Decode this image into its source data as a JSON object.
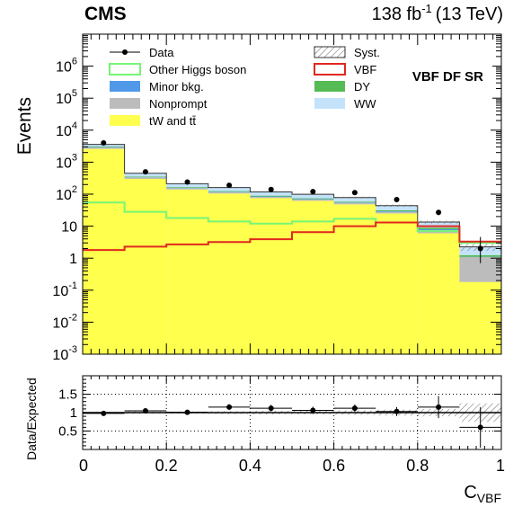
{
  "header": {
    "experiment": "CMS",
    "lumi_value": "138 fb",
    "lumi_exponent": "-1",
    "energy": "(13 TeV)"
  },
  "chart_data": {
    "type": "bar",
    "stacked": true,
    "region_label": "VBF DF SR",
    "ylabel": "Events",
    "xlabel": "C",
    "xlabel_subscript": "VBF",
    "yscale": "log",
    "ylim": [
      0.001,
      10000000
    ],
    "xlim": [
      0,
      1
    ],
    "bin_edges": [
      0,
      0.1,
      0.2,
      0.3,
      0.4,
      0.5,
      0.6,
      0.7,
      0.8,
      0.9,
      1.0
    ],
    "x_ticks": [
      "0",
      "0.2",
      "0.4",
      "0.6",
      "0.8",
      "1"
    ],
    "y_ticks": [
      {
        "base": "10",
        "exp": "-3",
        "value": 0.001
      },
      {
        "base": "10",
        "exp": "-2",
        "value": 0.01
      },
      {
        "base": "10",
        "exp": "-1",
        "value": 0.1
      },
      {
        "base": "1",
        "exp": "",
        "value": 1
      },
      {
        "base": "10",
        "exp": "",
        "value": 10
      },
      {
        "base": "10",
        "exp": "2",
        "value": 100
      },
      {
        "base": "10",
        "exp": "3",
        "value": 1000
      },
      {
        "base": "10",
        "exp": "4",
        "value": 10000
      },
      {
        "base": "10",
        "exp": "5",
        "value": 100000
      },
      {
        "base": "10",
        "exp": "6",
        "value": 1000000
      }
    ],
    "stack": [
      {
        "name": "tW and tt̄",
        "color": "#ffff4d",
        "values": [
          2600,
          300,
          140,
          105,
          75,
          62,
          48,
          25,
          6,
          0.18
        ]
      },
      {
        "name": "Nonprompt",
        "color": "#bcbcbc",
        "values": [
          300,
          35,
          14,
          10,
          7,
          6,
          5,
          3,
          1.5,
          0.9
        ]
      },
      {
        "name": "Minor bkg.",
        "color": "#4f99e8",
        "values": [
          80,
          10,
          5,
          4,
          3,
          2.5,
          2,
          1.2,
          0.5,
          0.02
        ]
      },
      {
        "name": "DY",
        "color": "#55bb55",
        "values": [
          150,
          15,
          8,
          6,
          5,
          4,
          3.5,
          2.5,
          1,
          0.15
        ]
      },
      {
        "name": "WW",
        "color": "#c4e3fb",
        "values": [
          470,
          90,
          45,
          36,
          28,
          25,
          20,
          12,
          4.5,
          1
        ]
      }
    ],
    "overlays": [
      {
        "name": "Other Higgs boson",
        "color": "#76f576",
        "values": [
          55,
          28,
          18,
          14,
          12,
          14,
          17,
          13,
          7,
          3
        ]
      },
      {
        "name": "VBF",
        "color": "#e0281f",
        "values": [
          1.8,
          2.3,
          2.7,
          3.2,
          3.9,
          6.5,
          10,
          13,
          10,
          3.3
        ]
      }
    ],
    "data": {
      "name": "Data",
      "x": [
        0.05,
        0.15,
        0.25,
        0.35,
        0.45,
        0.55,
        0.65,
        0.75,
        0.85,
        0.95
      ],
      "y": [
        4000,
        500,
        240,
        190,
        140,
        120,
        112,
        68,
        27,
        2
      ],
      "err_lo": [
        63,
        22,
        15,
        14,
        12,
        11,
        11,
        8,
        5,
        1.3
      ],
      "err_hi": [
        63,
        22,
        15,
        14,
        12,
        11,
        11,
        8,
        5,
        2.6
      ]
    },
    "syst_name": "Syst.",
    "ratio": {
      "ylabel": "Data/Expected",
      "ylim": [
        0,
        2
      ],
      "y_ticks": [
        "0.5",
        "1",
        "1.5"
      ],
      "values": [
        0.98,
        1.05,
        1.01,
        1.15,
        1.12,
        1.06,
        1.12,
        1.03,
        1.15,
        0.6
      ],
      "err": [
        0.02,
        0.05,
        0.06,
        0.08,
        0.09,
        0.1,
        0.1,
        0.12,
        0.3,
        0.55
      ],
      "syst": [
        0.02,
        0.03,
        0.03,
        0.04,
        0.05,
        0.05,
        0.06,
        0.08,
        0.1,
        0.25
      ]
    },
    "legend": {
      "placement": "top",
      "left": [
        "Data",
        "Other Higgs boson",
        "Minor bkg.",
        "Nonprompt",
        "tW and tt̄"
      ],
      "right": [
        "Syst.",
        "VBF",
        "DY",
        "WW"
      ]
    }
  }
}
